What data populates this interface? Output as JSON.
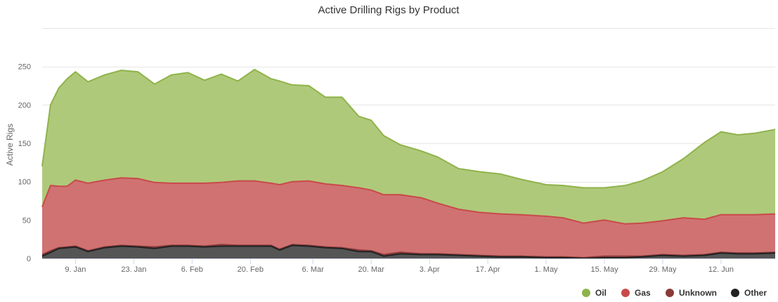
{
  "chart_data": {
    "type": "area",
    "stacked": true,
    "title": "Active Drilling Rigs by Product",
    "ylabel": "Active Rigs",
    "xlabel": "",
    "ylim": [
      0,
      300
    ],
    "yticks": [
      0,
      50,
      100,
      150,
      200,
      250
    ],
    "grid": true,
    "legend_position": "bottom-right",
    "x_start": "2020-01-01",
    "x_end": "2020-06-25",
    "x_tick_labels": [
      {
        "date": "2020-01-09",
        "label": "9. Jan"
      },
      {
        "date": "2020-01-23",
        "label": "23. Jan"
      },
      {
        "date": "2020-02-06",
        "label": "6. Feb"
      },
      {
        "date": "2020-02-20",
        "label": "20. Feb"
      },
      {
        "date": "2020-03-06",
        "label": "6. Mar"
      },
      {
        "date": "2020-03-20",
        "label": "20. Mar"
      },
      {
        "date": "2020-04-03",
        "label": "3. Apr"
      },
      {
        "date": "2020-04-17",
        "label": "17. Apr"
      },
      {
        "date": "2020-05-01",
        "label": "1. May"
      },
      {
        "date": "2020-05-15",
        "label": "15. May"
      },
      {
        "date": "2020-05-29",
        "label": "29. May"
      },
      {
        "date": "2020-06-12",
        "label": "12. Jun"
      }
    ],
    "series": [
      {
        "name": "Other",
        "color": "#222222",
        "fill": "#555555",
        "points": [
          [
            "2020-01-01",
            3
          ],
          [
            "2020-01-03",
            8
          ],
          [
            "2020-01-05",
            13
          ],
          [
            "2020-01-07",
            14
          ],
          [
            "2020-01-09",
            15
          ],
          [
            "2020-01-12",
            9
          ],
          [
            "2020-01-16",
            14
          ],
          [
            "2020-01-20",
            16
          ],
          [
            "2020-01-24",
            15
          ],
          [
            "2020-01-28",
            13
          ],
          [
            "2020-02-01",
            16
          ],
          [
            "2020-02-05",
            16
          ],
          [
            "2020-02-09",
            15
          ],
          [
            "2020-02-13",
            16
          ],
          [
            "2020-02-17",
            16
          ],
          [
            "2020-02-21",
            16
          ],
          [
            "2020-02-25",
            16
          ],
          [
            "2020-02-27",
            11
          ],
          [
            "2020-03-01",
            17
          ],
          [
            "2020-03-05",
            16
          ],
          [
            "2020-03-09",
            14
          ],
          [
            "2020-03-13",
            13
          ],
          [
            "2020-03-17",
            9
          ],
          [
            "2020-03-20",
            9
          ],
          [
            "2020-03-23",
            3
          ],
          [
            "2020-03-27",
            6
          ],
          [
            "2020-04-01",
            5
          ],
          [
            "2020-04-05",
            5
          ],
          [
            "2020-04-10",
            4
          ],
          [
            "2020-04-15",
            3
          ],
          [
            "2020-04-20",
            2
          ],
          [
            "2020-04-25",
            2
          ],
          [
            "2020-05-01",
            1
          ],
          [
            "2020-05-05",
            1
          ],
          [
            "2020-05-10",
            0
          ],
          [
            "2020-05-15",
            1
          ],
          [
            "2020-05-20",
            1
          ],
          [
            "2020-05-24",
            2
          ],
          [
            "2020-05-29",
            4
          ],
          [
            "2020-06-03",
            3
          ],
          [
            "2020-06-08",
            4
          ],
          [
            "2020-06-12",
            7
          ],
          [
            "2020-06-16",
            6
          ],
          [
            "2020-06-20",
            6
          ],
          [
            "2020-06-25",
            7
          ]
        ]
      },
      {
        "name": "Unknown",
        "color": "#8b3a3a",
        "fill": "#a04040",
        "points": [
          [
            "2020-01-01",
            2
          ],
          [
            "2020-01-03",
            2
          ],
          [
            "2020-01-05",
            1
          ],
          [
            "2020-01-07",
            1
          ],
          [
            "2020-01-09",
            1
          ],
          [
            "2020-01-12",
            1
          ],
          [
            "2020-01-16",
            1
          ],
          [
            "2020-01-20",
            1
          ],
          [
            "2020-01-24",
            1
          ],
          [
            "2020-01-28",
            2
          ],
          [
            "2020-02-01",
            1
          ],
          [
            "2020-02-05",
            1
          ],
          [
            "2020-02-09",
            1
          ],
          [
            "2020-02-13",
            2
          ],
          [
            "2020-02-17",
            1
          ],
          [
            "2020-02-21",
            1
          ],
          [
            "2020-02-25",
            1
          ],
          [
            "2020-02-27",
            1
          ],
          [
            "2020-03-01",
            1
          ],
          [
            "2020-03-05",
            1
          ],
          [
            "2020-03-09",
            1
          ],
          [
            "2020-03-13",
            1
          ],
          [
            "2020-03-17",
            2
          ],
          [
            "2020-03-20",
            1
          ],
          [
            "2020-03-23",
            2
          ],
          [
            "2020-03-27",
            2
          ],
          [
            "2020-04-01",
            1
          ],
          [
            "2020-04-05",
            1
          ],
          [
            "2020-04-10",
            1
          ],
          [
            "2020-04-15",
            1
          ],
          [
            "2020-04-20",
            1
          ],
          [
            "2020-04-25",
            1
          ],
          [
            "2020-05-01",
            1
          ],
          [
            "2020-05-05",
            1
          ],
          [
            "2020-05-10",
            1
          ],
          [
            "2020-05-15",
            2
          ],
          [
            "2020-05-20",
            2
          ],
          [
            "2020-05-24",
            1
          ],
          [
            "2020-05-29",
            1
          ],
          [
            "2020-06-03",
            1
          ],
          [
            "2020-06-08",
            1
          ],
          [
            "2020-06-12",
            1
          ],
          [
            "2020-06-16",
            1
          ],
          [
            "2020-06-20",
            1
          ],
          [
            "2020-06-25",
            1
          ]
        ]
      },
      {
        "name": "Gas",
        "color": "#c84a4a",
        "fill": "#d07272",
        "points": [
          [
            "2020-01-01",
            62
          ],
          [
            "2020-01-03",
            85
          ],
          [
            "2020-01-05",
            80
          ],
          [
            "2020-01-07",
            79
          ],
          [
            "2020-01-09",
            86
          ],
          [
            "2020-01-12",
            88
          ],
          [
            "2020-01-16",
            87
          ],
          [
            "2020-01-20",
            88
          ],
          [
            "2020-01-24",
            88
          ],
          [
            "2020-01-28",
            84
          ],
          [
            "2020-02-01",
            81
          ],
          [
            "2020-02-05",
            81
          ],
          [
            "2020-02-09",
            82
          ],
          [
            "2020-02-13",
            81
          ],
          [
            "2020-02-17",
            84
          ],
          [
            "2020-02-21",
            84
          ],
          [
            "2020-02-25",
            81
          ],
          [
            "2020-02-27",
            84
          ],
          [
            "2020-03-01",
            82
          ],
          [
            "2020-03-05",
            84
          ],
          [
            "2020-03-09",
            82
          ],
          [
            "2020-03-13",
            81
          ],
          [
            "2020-03-17",
            81
          ],
          [
            "2020-03-20",
            79
          ],
          [
            "2020-03-23",
            78
          ],
          [
            "2020-03-27",
            75
          ],
          [
            "2020-04-01",
            73
          ],
          [
            "2020-04-05",
            66
          ],
          [
            "2020-04-10",
            59
          ],
          [
            "2020-04-15",
            56
          ],
          [
            "2020-04-20",
            55
          ],
          [
            "2020-04-25",
            54
          ],
          [
            "2020-05-01",
            53
          ],
          [
            "2020-05-05",
            51
          ],
          [
            "2020-05-10",
            45
          ],
          [
            "2020-05-15",
            47
          ],
          [
            "2020-05-20",
            42
          ],
          [
            "2020-05-24",
            43
          ],
          [
            "2020-05-29",
            44
          ],
          [
            "2020-06-03",
            49
          ],
          [
            "2020-06-08",
            46
          ],
          [
            "2020-06-12",
            49
          ],
          [
            "2020-06-16",
            50
          ],
          [
            "2020-06-20",
            50
          ],
          [
            "2020-06-25",
            50
          ]
        ]
      },
      {
        "name": "Oil",
        "color": "#8fb34a",
        "fill": "#afc97a",
        "points": [
          [
            "2020-01-01",
            53
          ],
          [
            "2020-01-03",
            105
          ],
          [
            "2020-01-05",
            128
          ],
          [
            "2020-01-07",
            140
          ],
          [
            "2020-01-09",
            141
          ],
          [
            "2020-01-12",
            132
          ],
          [
            "2020-01-16",
            137
          ],
          [
            "2020-01-20",
            140
          ],
          [
            "2020-01-24",
            139
          ],
          [
            "2020-01-28",
            128
          ],
          [
            "2020-02-01",
            141
          ],
          [
            "2020-02-05",
            144
          ],
          [
            "2020-02-09",
            134
          ],
          [
            "2020-02-13",
            141
          ],
          [
            "2020-02-17",
            130
          ],
          [
            "2020-02-21",
            145
          ],
          [
            "2020-02-25",
            136
          ],
          [
            "2020-02-27",
            135
          ],
          [
            "2020-03-01",
            126
          ],
          [
            "2020-03-05",
            124
          ],
          [
            "2020-03-09",
            113
          ],
          [
            "2020-03-13",
            115
          ],
          [
            "2020-03-17",
            93
          ],
          [
            "2020-03-20",
            91
          ],
          [
            "2020-03-23",
            77
          ],
          [
            "2020-03-27",
            65
          ],
          [
            "2020-04-01",
            61
          ],
          [
            "2020-04-05",
            60
          ],
          [
            "2020-04-10",
            53
          ],
          [
            "2020-04-15",
            53
          ],
          [
            "2020-04-20",
            52
          ],
          [
            "2020-04-25",
            46
          ],
          [
            "2020-05-01",
            41
          ],
          [
            "2020-05-05",
            42
          ],
          [
            "2020-05-10",
            46
          ],
          [
            "2020-05-15",
            42
          ],
          [
            "2020-05-20",
            50
          ],
          [
            "2020-05-24",
            55
          ],
          [
            "2020-05-29",
            64
          ],
          [
            "2020-06-03",
            77
          ],
          [
            "2020-06-08",
            100
          ],
          [
            "2020-06-12",
            108
          ],
          [
            "2020-06-16",
            104
          ],
          [
            "2020-06-20",
            106
          ],
          [
            "2020-06-25",
            110
          ]
        ]
      }
    ],
    "legend_order": [
      "Oil",
      "Gas",
      "Unknown",
      "Other"
    ]
  }
}
